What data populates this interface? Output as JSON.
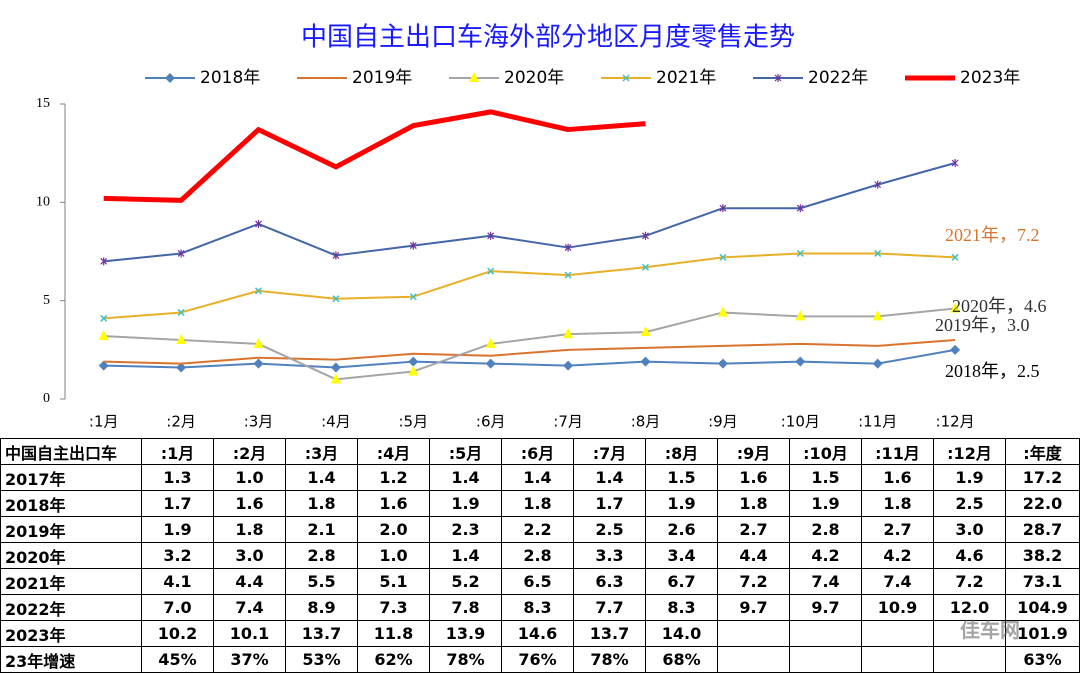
{
  "chart_data": {
    "type": "line",
    "title": "中国自主出口车海外部分地区月度零售走势",
    "categories": [
      ":1月",
      ":2月",
      ":3月",
      ":4月",
      ":5月",
      ":6月",
      ":7月",
      ":8月",
      ":9月",
      ":10月",
      ":11月",
      ":12月"
    ],
    "ylim": [
      0,
      15
    ],
    "yticks": [
      0,
      5,
      10,
      15
    ],
    "grid": false,
    "series": [
      {
        "name": "2018年",
        "color": "#4f81bd",
        "marker": "diamond",
        "marker_color": "#4f81bd",
        "width": 2,
        "values": [
          1.7,
          1.6,
          1.8,
          1.6,
          1.9,
          1.8,
          1.7,
          1.9,
          1.8,
          1.9,
          1.8,
          2.5
        ]
      },
      {
        "name": "2019年",
        "color": "#d9742f",
        "marker": "none",
        "marker_color": "#d9742f",
        "width": 2,
        "values": [
          1.9,
          1.8,
          2.1,
          2.0,
          2.3,
          2.2,
          2.5,
          2.6,
          2.7,
          2.8,
          2.7,
          3.0
        ]
      },
      {
        "name": "2020年",
        "color": "#a5a5a5",
        "marker": "triangle",
        "marker_color": "#ffff00",
        "width": 2,
        "values": [
          3.2,
          3.0,
          2.8,
          1.0,
          1.4,
          2.8,
          3.3,
          3.4,
          4.4,
          4.2,
          4.2,
          4.6
        ]
      },
      {
        "name": "2021年",
        "color": "#e8b028",
        "marker": "x",
        "marker_color": "#40c0c0",
        "width": 2,
        "values": [
          4.1,
          4.4,
          5.5,
          5.1,
          5.2,
          6.5,
          6.3,
          6.7,
          7.2,
          7.4,
          7.4,
          7.2
        ]
      },
      {
        "name": "2022年",
        "color": "#4366a8",
        "marker": "star",
        "marker_color": "#7030a0",
        "width": 2,
        "values": [
          7.0,
          7.4,
          8.9,
          7.3,
          7.8,
          8.3,
          7.7,
          8.3,
          9.7,
          9.7,
          10.9,
          12.0
        ]
      },
      {
        "name": "2023年",
        "color": "#ff0000",
        "marker": "none",
        "marker_color": "#ff0000",
        "width": 5,
        "values": [
          10.2,
          10.1,
          13.7,
          11.8,
          13.9,
          14.6,
          13.7,
          14.0,
          null,
          null,
          null,
          null
        ]
      }
    ],
    "annotations": [
      "2021年，7.2",
      "2020年，4.6",
      "2019年，3.0",
      "2018年，2.5"
    ]
  },
  "table": {
    "header": [
      "中国自主出口车",
      ":1月",
      ":2月",
      ":3月",
      ":4月",
      ":5月",
      ":6月",
      ":7月",
      ":8月",
      ":9月",
      ":10月",
      ":11月",
      ":12月",
      ":年度"
    ],
    "rows": [
      [
        "2017年",
        "1.3",
        "1.0",
        "1.4",
        "1.2",
        "1.4",
        "1.4",
        "1.4",
        "1.5",
        "1.6",
        "1.5",
        "1.6",
        "1.9",
        "17.2"
      ],
      [
        "2018年",
        "1.7",
        "1.6",
        "1.8",
        "1.6",
        "1.9",
        "1.8",
        "1.7",
        "1.9",
        "1.8",
        "1.9",
        "1.8",
        "2.5",
        "22.0"
      ],
      [
        "2019年",
        "1.9",
        "1.8",
        "2.1",
        "2.0",
        "2.3",
        "2.2",
        "2.5",
        "2.6",
        "2.7",
        "2.8",
        "2.7",
        "3.0",
        "28.7"
      ],
      [
        "2020年",
        "3.2",
        "3.0",
        "2.8",
        "1.0",
        "1.4",
        "2.8",
        "3.3",
        "3.4",
        "4.4",
        "4.2",
        "4.2",
        "4.6",
        "38.2"
      ],
      [
        "2021年",
        "4.1",
        "4.4",
        "5.5",
        "5.1",
        "5.2",
        "6.5",
        "6.3",
        "6.7",
        "7.2",
        "7.4",
        "7.4",
        "7.2",
        "73.1"
      ],
      [
        "2022年",
        "7.0",
        "7.4",
        "8.9",
        "7.3",
        "7.8",
        "8.3",
        "7.7",
        "8.3",
        "9.7",
        "9.7",
        "10.9",
        "12.0",
        "104.9"
      ],
      [
        "2023年",
        "10.2",
        "10.1",
        "13.7",
        "11.8",
        "13.9",
        "14.6",
        "13.7",
        "14.0",
        null,
        null,
        null,
        null,
        "101.9"
      ],
      [
        "23年增速",
        "45%",
        "37%",
        "53%",
        "62%",
        "78%",
        "76%",
        "78%",
        "68%",
        null,
        null,
        null,
        null,
        "63%"
      ]
    ]
  },
  "watermark": "佳车网"
}
